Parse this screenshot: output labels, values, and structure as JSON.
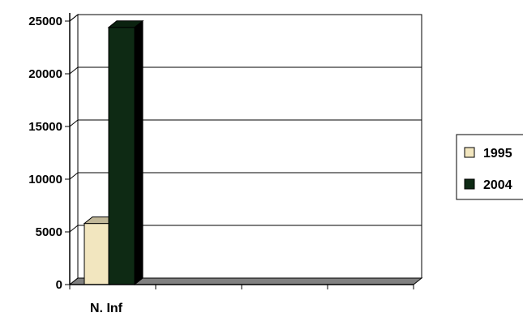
{
  "chart_data": {
    "type": "bar",
    "style": "3d",
    "categories": [
      "N. Inf"
    ],
    "series": [
      {
        "name": "1995",
        "values": [
          5800
        ],
        "color": "#f2e6bf"
      },
      {
        "name": "2004",
        "values": [
          24400
        ],
        "color": "#0e2a14"
      }
    ],
    "ylim": [
      0,
      25000
    ],
    "yticks": [
      "0",
      "5000",
      "10000",
      "15000",
      "20000",
      "25000"
    ],
    "title": "",
    "xlabel": "",
    "ylabel": "",
    "grid": true,
    "legend_position": "right"
  }
}
